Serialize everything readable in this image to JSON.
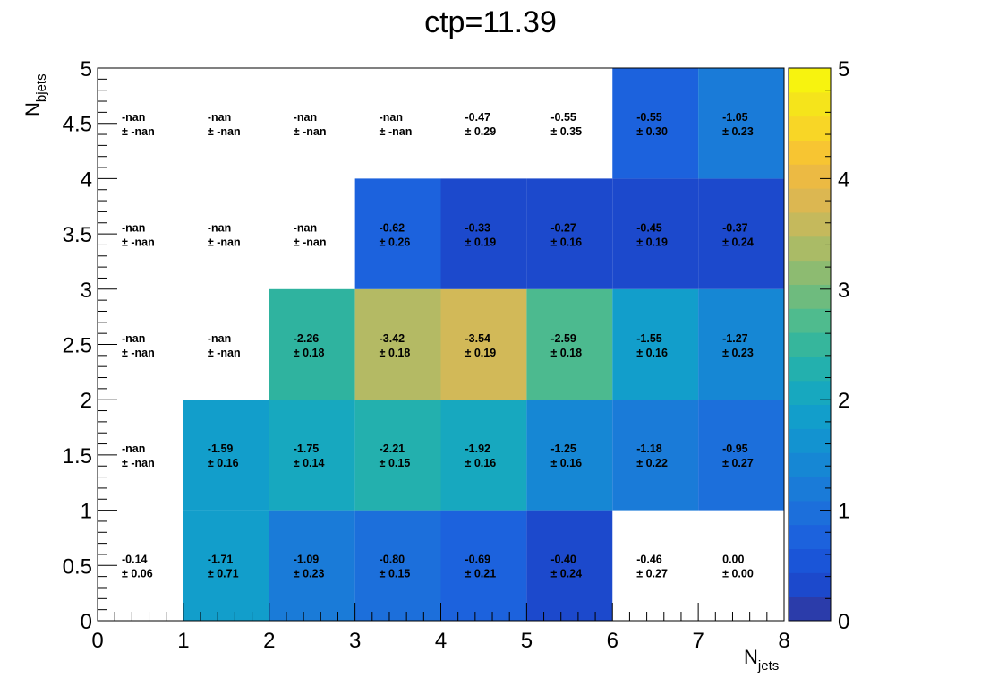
{
  "chart_data": {
    "type": "heatmap",
    "title": "ctp=11.39",
    "xlabel": {
      "main": "N",
      "sub": "jets"
    },
    "ylabel": {
      "main": "N",
      "sub": "bjets"
    },
    "xlim": [
      0,
      8
    ],
    "ylim": [
      0,
      5
    ],
    "x_ticks": [
      "0",
      "1",
      "2",
      "3",
      "4",
      "5",
      "6",
      "7",
      "8"
    ],
    "y_ticks": [
      "0",
      "0.5",
      "1",
      "1.5",
      "2",
      "2.5",
      "3",
      "3.5",
      "4",
      "4.5",
      "5"
    ],
    "zlim": [
      0,
      5
    ],
    "z_ticks": [
      "0",
      "1",
      "2",
      "3",
      "4",
      "5"
    ],
    "palette": [
      "#2b3caa",
      "#1c49cc",
      "#1a55d8",
      "#1c62dd",
      "#1c6fdb",
      "#1a7bd8",
      "#1687d4",
      "#1393d0",
      "#129ecb",
      "#17a8bf",
      "#23b0ae",
      "#36b69c",
      "#4fbb8e",
      "#6ebb7e",
      "#8dbb71",
      "#aabb66",
      "#c5b95c",
      "#dcb751",
      "#ecba43",
      "#f7c532",
      "#f8d626",
      "#f5e41b",
      "#f7f30f"
    ],
    "cells": [
      {
        "x": 0,
        "y": 0,
        "value": "-0.14",
        "error": "± 0.06",
        "color": null
      },
      {
        "x": 1,
        "y": 0,
        "value": "-1.71",
        "error": "± 0.71",
        "color": "#129ecb"
      },
      {
        "x": 2,
        "y": 0,
        "value": "-1.09",
        "error": "± 0.23",
        "color": "#1a7bd8"
      },
      {
        "x": 3,
        "y": 0,
        "value": "-0.80",
        "error": "± 0.15",
        "color": "#1c6fdb"
      },
      {
        "x": 4,
        "y": 0,
        "value": "-0.69",
        "error": "± 0.21",
        "color": "#1c62dd"
      },
      {
        "x": 5,
        "y": 0,
        "value": "-0.40",
        "error": "± 0.24",
        "color": "#1c49cc"
      },
      {
        "x": 6,
        "y": 0,
        "value": "-0.46",
        "error": "± 0.27",
        "color": null
      },
      {
        "x": 7,
        "y": 0,
        "value": "0.00",
        "error": "± 0.00",
        "color": null
      },
      {
        "x": 0,
        "y": 1,
        "value": "-nan",
        "error": "± -nan",
        "color": null
      },
      {
        "x": 1,
        "y": 1,
        "value": "-1.59",
        "error": "± 0.16",
        "color": "#129ecb"
      },
      {
        "x": 2,
        "y": 1,
        "value": "-1.75",
        "error": "± 0.14",
        "color": "#17a8bf"
      },
      {
        "x": 3,
        "y": 1,
        "value": "-2.21",
        "error": "± 0.15",
        "color": "#23b0ae"
      },
      {
        "x": 4,
        "y": 1,
        "value": "-1.92",
        "error": "± 0.16",
        "color": "#17a8bf"
      },
      {
        "x": 5,
        "y": 1,
        "value": "-1.25",
        "error": "± 0.16",
        "color": "#1687d4"
      },
      {
        "x": 6,
        "y": 1,
        "value": "-1.18",
        "error": "± 0.22",
        "color": "#1a7bd8"
      },
      {
        "x": 7,
        "y": 1,
        "value": "-0.95",
        "error": "± 0.27",
        "color": "#1c6fdb"
      },
      {
        "x": 0,
        "y": 2,
        "value": "-nan",
        "error": "± -nan",
        "color": null
      },
      {
        "x": 1,
        "y": 2,
        "value": "-nan",
        "error": "± -nan",
        "color": null
      },
      {
        "x": 2,
        "y": 2,
        "value": "-2.26",
        "error": "± 0.18",
        "color": "#2fb39f"
      },
      {
        "x": 3,
        "y": 2,
        "value": "-3.42",
        "error": "± 0.18",
        "color": "#b4ba64"
      },
      {
        "x": 4,
        "y": 2,
        "value": "-3.54",
        "error": "± 0.19",
        "color": "#d2b958"
      },
      {
        "x": 5,
        "y": 2,
        "value": "-2.59",
        "error": "± 0.18",
        "color": "#4cba8f"
      },
      {
        "x": 6,
        "y": 2,
        "value": "-1.55",
        "error": "± 0.16",
        "color": "#129ecb"
      },
      {
        "x": 7,
        "y": 2,
        "value": "-1.27",
        "error": "± 0.23",
        "color": "#1687d4"
      },
      {
        "x": 0,
        "y": 3,
        "value": "-nan",
        "error": "± -nan",
        "color": null
      },
      {
        "x": 1,
        "y": 3,
        "value": "-nan",
        "error": "± -nan",
        "color": null
      },
      {
        "x": 2,
        "y": 3,
        "value": "-nan",
        "error": "± -nan",
        "color": null
      },
      {
        "x": 3,
        "y": 3,
        "value": "-0.62",
        "error": "± 0.26",
        "color": "#1c62dd"
      },
      {
        "x": 4,
        "y": 3,
        "value": "-0.33",
        "error": "± 0.19",
        "color": "#1c49cc"
      },
      {
        "x": 5,
        "y": 3,
        "value": "-0.27",
        "error": "± 0.16",
        "color": "#1c49cc"
      },
      {
        "x": 6,
        "y": 3,
        "value": "-0.45",
        "error": "± 0.19",
        "color": "#1c49cc"
      },
      {
        "x": 7,
        "y": 3,
        "value": "-0.37",
        "error": "± 0.24",
        "color": "#1c49cc"
      },
      {
        "x": 0,
        "y": 4,
        "value": "-nan",
        "error": "± -nan",
        "color": null
      },
      {
        "x": 1,
        "y": 4,
        "value": "-nan",
        "error": "± -nan",
        "color": null
      },
      {
        "x": 2,
        "y": 4,
        "value": "-nan",
        "error": "± -nan",
        "color": null
      },
      {
        "x": 3,
        "y": 4,
        "value": "-nan",
        "error": "± -nan",
        "color": null
      },
      {
        "x": 4,
        "y": 4,
        "value": "-0.47",
        "error": "± 0.29",
        "color": null
      },
      {
        "x": 5,
        "y": 4,
        "value": "-0.55",
        "error": "± 0.35",
        "color": null
      },
      {
        "x": 6,
        "y": 4,
        "value": "-0.55",
        "error": "± 0.30",
        "color": "#1c62dd"
      },
      {
        "x": 7,
        "y": 4,
        "value": "-1.05",
        "error": "± 0.23",
        "color": "#1a7bd8"
      }
    ]
  }
}
